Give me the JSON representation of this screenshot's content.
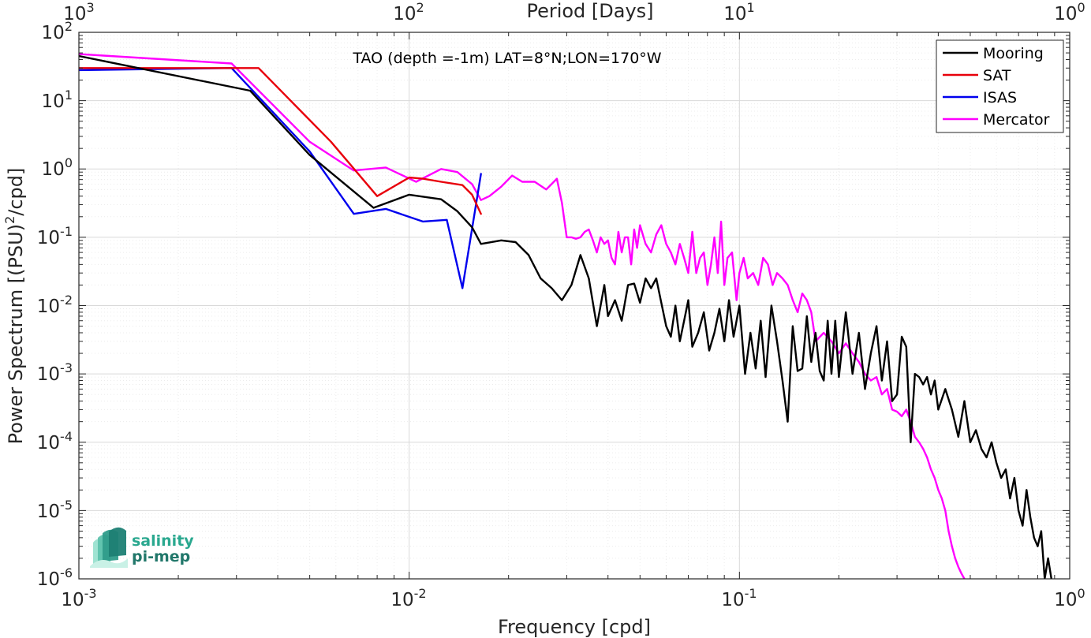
{
  "chart_data": {
    "type": "line",
    "title": "TAO (depth =-1m) LAT=8°N;LON=170°W",
    "xlabel": "Frequency [cpd]",
    "ylabel_main": "Power Spectrum [(PSU)",
    "ylabel_sup": "2",
    "ylabel_tail": "/cpd]",
    "top_xlabel": "Period [Days]",
    "x_scale": "log",
    "y_scale": "log",
    "xlim": [
      0.001,
      1
    ],
    "ylim": [
      1e-06,
      100
    ],
    "grid": true,
    "legend_position": "top-right",
    "x_ticks": [
      {
        "value": 0.001,
        "base": "10",
        "exp": "-3"
      },
      {
        "value": 0.01,
        "base": "10",
        "exp": "-2"
      },
      {
        "value": 0.1,
        "base": "10",
        "exp": "-1"
      },
      {
        "value": 1,
        "base": "10",
        "exp": "0"
      }
    ],
    "top_ticks": [
      {
        "value": 0.001,
        "base": "10",
        "exp": "3"
      },
      {
        "value": 0.01,
        "base": "10",
        "exp": "2"
      },
      {
        "value": 0.1,
        "base": "10",
        "exp": "1"
      },
      {
        "value": 1,
        "base": "10",
        "exp": "0"
      }
    ],
    "y_ticks": [
      {
        "value": 100,
        "base": "10",
        "exp": "2"
      },
      {
        "value": 10,
        "base": "10",
        "exp": "1"
      },
      {
        "value": 1,
        "base": "10",
        "exp": "0"
      },
      {
        "value": 0.1,
        "base": "10",
        "exp": "-1"
      },
      {
        "value": 0.01,
        "base": "10",
        "exp": "-2"
      },
      {
        "value": 0.001,
        "base": "10",
        "exp": "-3"
      },
      {
        "value": 0.0001,
        "base": "10",
        "exp": "-4"
      },
      {
        "value": 1e-05,
        "base": "10",
        "exp": "-5"
      },
      {
        "value": 1e-06,
        "base": "10",
        "exp": "-6"
      }
    ],
    "series": [
      {
        "name": "Mooring",
        "color": "#000000",
        "x": [
          0.001,
          0.0033,
          0.005,
          0.0078,
          0.01,
          0.0125,
          0.014,
          0.0155,
          0.0165,
          0.019,
          0.021,
          0.023,
          0.025,
          0.027,
          0.029,
          0.031,
          0.033,
          0.035,
          0.037,
          0.039,
          0.04,
          0.042,
          0.044,
          0.046,
          0.048,
          0.05,
          0.052,
          0.054,
          0.056,
          0.058,
          0.06,
          0.062,
          0.064,
          0.066,
          0.068,
          0.07,
          0.072,
          0.075,
          0.078,
          0.081,
          0.084,
          0.087,
          0.09,
          0.093,
          0.096,
          0.1,
          0.104,
          0.108,
          0.112,
          0.116,
          0.12,
          0.125,
          0.13,
          0.135,
          0.14,
          0.145,
          0.15,
          0.155,
          0.16,
          0.165,
          0.17,
          0.175,
          0.18,
          0.185,
          0.19,
          0.195,
          0.2,
          0.21,
          0.22,
          0.23,
          0.24,
          0.25,
          0.26,
          0.27,
          0.28,
          0.29,
          0.3,
          0.31,
          0.32,
          0.33,
          0.34,
          0.35,
          0.36,
          0.37,
          0.38,
          0.39,
          0.4,
          0.42,
          0.44,
          0.46,
          0.48,
          0.5,
          0.52,
          0.54,
          0.56,
          0.58,
          0.6,
          0.62,
          0.64,
          0.66,
          0.68,
          0.7,
          0.72,
          0.74,
          0.76,
          0.78,
          0.8,
          0.82,
          0.84,
          0.86,
          0.88
        ],
        "y": [
          45,
          14,
          1.6,
          0.27,
          0.42,
          0.36,
          0.24,
          0.14,
          0.08,
          0.09,
          0.085,
          0.055,
          0.025,
          0.018,
          0.012,
          0.02,
          0.055,
          0.025,
          0.005,
          0.02,
          0.007,
          0.012,
          0.006,
          0.02,
          0.021,
          0.011,
          0.025,
          0.018,
          0.025,
          0.011,
          0.005,
          0.0035,
          0.01,
          0.003,
          0.006,
          0.012,
          0.0025,
          0.004,
          0.008,
          0.0022,
          0.004,
          0.009,
          0.003,
          0.012,
          0.0035,
          0.01,
          0.001,
          0.004,
          0.0012,
          0.006,
          0.0009,
          0.01,
          0.003,
          0.0008,
          0.0002,
          0.005,
          0.0011,
          0.0012,
          0.007,
          0.0015,
          0.004,
          0.0011,
          0.0008,
          0.006,
          0.001,
          0.006,
          0.0009,
          0.008,
          0.001,
          0.004,
          0.0006,
          0.002,
          0.005,
          0.0008,
          0.003,
          0.0004,
          0.0005,
          0.0035,
          0.0025,
          0.0001,
          0.001,
          0.0009,
          0.0007,
          0.0009,
          0.0005,
          0.0008,
          0.0003,
          0.0006,
          0.0003,
          0.00012,
          0.0004,
          0.0001,
          0.00015,
          8e-05,
          6e-05,
          0.0001,
          5e-05,
          3e-05,
          4e-05,
          1.5e-05,
          3e-05,
          1e-05,
          6e-06,
          2e-05,
          8e-06,
          4e-06,
          3e-06,
          5e-06,
          1e-06,
          2e-06,
          1e-06
        ],
        "label_text": "Mooring"
      },
      {
        "name": "SAT",
        "color": "#e8000b",
        "x": [
          0.001,
          0.0035,
          0.0058,
          0.008,
          0.01,
          0.011,
          0.0125,
          0.0145,
          0.0155,
          0.0165
        ],
        "y": [
          30,
          30,
          2.5,
          0.4,
          0.75,
          0.72,
          0.65,
          0.58,
          0.42,
          0.22
        ],
        "label_text": "SAT"
      },
      {
        "name": "ISAS",
        "color": "#0000ee",
        "x": [
          0.001,
          0.0029,
          0.005,
          0.0068,
          0.0085,
          0.011,
          0.013,
          0.0145,
          0.0165
        ],
        "y": [
          28,
          30,
          1.8,
          0.22,
          0.26,
          0.17,
          0.18,
          0.018,
          0.85
        ],
        "label_text": "ISAS"
      },
      {
        "name": "Mercator",
        "color": "#ff00ff",
        "x": [
          0.001,
          0.0029,
          0.005,
          0.0068,
          0.0085,
          0.0105,
          0.0125,
          0.014,
          0.0155,
          0.0165,
          0.0175,
          0.019,
          0.0205,
          0.022,
          0.024,
          0.026,
          0.028,
          0.029,
          0.03,
          0.031,
          0.032,
          0.033,
          0.034,
          0.035,
          0.036,
          0.037,
          0.038,
          0.039,
          0.04,
          0.041,
          0.042,
          0.043,
          0.044,
          0.045,
          0.046,
          0.047,
          0.048,
          0.049,
          0.05,
          0.052,
          0.054,
          0.056,
          0.058,
          0.06,
          0.062,
          0.064,
          0.066,
          0.068,
          0.07,
          0.072,
          0.074,
          0.076,
          0.078,
          0.08,
          0.082,
          0.084,
          0.086,
          0.088,
          0.09,
          0.092,
          0.095,
          0.098,
          0.1,
          0.103,
          0.106,
          0.11,
          0.114,
          0.118,
          0.122,
          0.126,
          0.13,
          0.135,
          0.14,
          0.145,
          0.15,
          0.155,
          0.16,
          0.165,
          0.17,
          0.18,
          0.19,
          0.2,
          0.21,
          0.22,
          0.23,
          0.24,
          0.25,
          0.26,
          0.27,
          0.28,
          0.29,
          0.3,
          0.31,
          0.32,
          0.33,
          0.34,
          0.35,
          0.36,
          0.37,
          0.38,
          0.39,
          0.4,
          0.41,
          0.42,
          0.43,
          0.44,
          0.45,
          0.46,
          0.47,
          0.48,
          0.49,
          0.5
        ],
        "y": [
          48,
          35,
          2.5,
          0.95,
          1.05,
          0.65,
          1.0,
          0.9,
          0.6,
          0.35,
          0.4,
          0.55,
          0.8,
          0.65,
          0.65,
          0.5,
          0.72,
          0.32,
          0.1,
          0.1,
          0.095,
          0.1,
          0.12,
          0.13,
          0.09,
          0.06,
          0.1,
          0.08,
          0.09,
          0.05,
          0.04,
          0.12,
          0.06,
          0.1,
          0.1,
          0.04,
          0.13,
          0.07,
          0.15,
          0.08,
          0.06,
          0.11,
          0.15,
          0.08,
          0.06,
          0.04,
          0.08,
          0.05,
          0.03,
          0.12,
          0.03,
          0.05,
          0.06,
          0.02,
          0.04,
          0.1,
          0.03,
          0.17,
          0.02,
          0.05,
          0.06,
          0.012,
          0.03,
          0.05,
          0.025,
          0.03,
          0.02,
          0.05,
          0.04,
          0.02,
          0.03,
          0.025,
          0.02,
          0.012,
          0.008,
          0.015,
          0.012,
          0.008,
          0.003,
          0.004,
          0.003,
          0.002,
          0.0028,
          0.002,
          0.0015,
          0.001,
          0.0008,
          0.0009,
          0.0005,
          0.0006,
          0.0003,
          0.00028,
          0.00024,
          0.0003,
          0.0002,
          0.00012,
          0.0001,
          8e-05,
          6e-05,
          4e-05,
          3e-05,
          2e-05,
          1.5e-05,
          1e-05,
          5e-06,
          3e-06,
          2e-06,
          1.5e-06,
          1.2e-06,
          1e-06,
          8e-07,
          6e-07
        ],
        "label_text": "Mercator"
      }
    ]
  },
  "logo": {
    "line1": "salinity",
    "line2": "pi-mep",
    "color1": "#2aa88f",
    "color2": "#21776a"
  }
}
